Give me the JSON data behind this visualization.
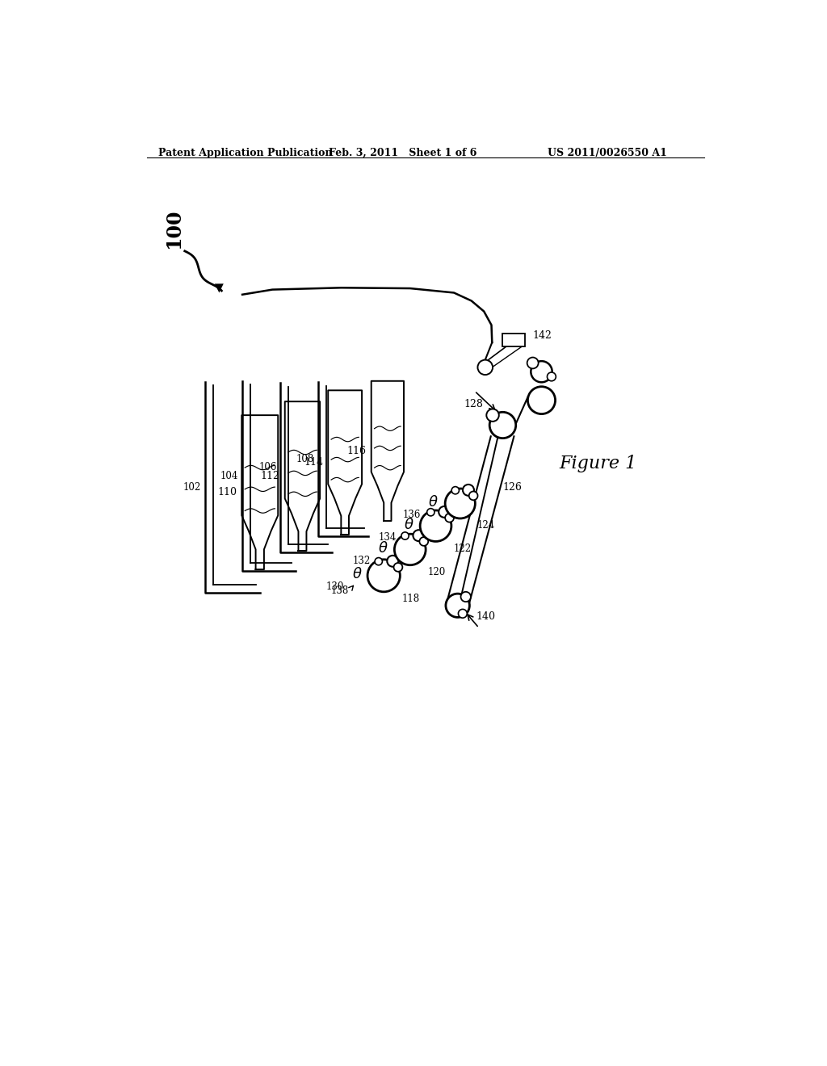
{
  "header_left": "Patent Application Publication",
  "header_center": "Feb. 3, 2011   Sheet 1 of 6",
  "header_right": "US 2011/0026550 A1",
  "figure_label": "Figure 1",
  "bg_color": "#ffffff",
  "line_color": "#000000",
  "refs": {
    "r100": "100",
    "r102": "102",
    "r104": "104",
    "r106": "106",
    "r108": "108",
    "r110": "110",
    "r112": "112",
    "r114": "114",
    "r116": "116",
    "r118": "118",
    "r120": "120",
    "r122": "122",
    "r124": "124",
    "r126": "126",
    "r128": "128",
    "r130": "130",
    "r132": "132",
    "r134": "134",
    "r136": "136",
    "r138": "138",
    "r140": "140",
    "r142": "142"
  }
}
